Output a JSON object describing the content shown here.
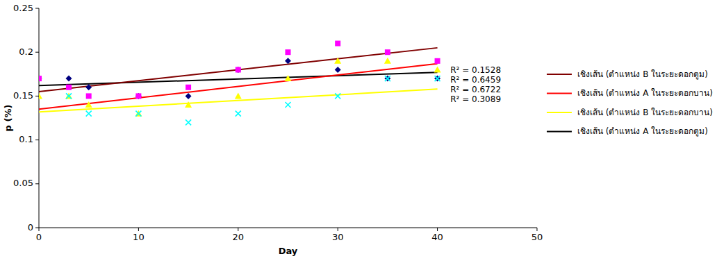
{
  "chart_data": {
    "type": "scatter",
    "x_label": "Day",
    "y_label": "p (%)",
    "xlim": [
      0,
      50
    ],
    "xticks": [
      0,
      10,
      20,
      30,
      40,
      50
    ],
    "ylim": [
      0,
      0.25
    ],
    "yticks": [
      0,
      0.05,
      0.1,
      0.15,
      0.2,
      0.25
    ],
    "grid": false,
    "legend": "right",
    "annotations": [
      "R² = 0.1528",
      "R² = 0.6459",
      "R² = 0.6722",
      "R² = 0.3089"
    ],
    "series": [
      {
        "type": "scatter",
        "marker": "diamond",
        "color": "#000080",
        "x": [
          0,
          3,
          5,
          10,
          15,
          20,
          25,
          30,
          35,
          40
        ],
        "values": [
          0.17,
          0.17,
          0.16,
          0.15,
          0.15,
          0.18,
          0.19,
          0.18,
          0.17,
          0.17
        ]
      },
      {
        "type": "scatter",
        "marker": "square",
        "color": "#ff00ff",
        "x": [
          0,
          3,
          5,
          10,
          15,
          20,
          25,
          30,
          35,
          40
        ],
        "values": [
          0.17,
          0.16,
          0.15,
          0.15,
          0.16,
          0.18,
          0.2,
          0.21,
          0.2,
          0.19
        ]
      },
      {
        "type": "scatter",
        "marker": "triangle",
        "color": "#ffff00",
        "x": [
          0,
          3,
          5,
          10,
          15,
          20,
          25,
          30,
          35,
          40
        ],
        "values": [
          0.15,
          0.15,
          0.14,
          0.13,
          0.14,
          0.15,
          0.17,
          0.19,
          0.19,
          0.18
        ]
      },
      {
        "type": "scatter",
        "marker": "cross",
        "color": "#00ffff",
        "x": [
          3,
          5,
          10,
          15,
          20,
          25,
          30,
          35,
          40
        ],
        "values": [
          0.15,
          0.13,
          0.13,
          0.12,
          0.13,
          0.14,
          0.15,
          0.17,
          0.17
        ]
      },
      {
        "type": "line",
        "name": "เชิงเส้น (ตำแหน่ง B ในระยะดอกตูม)",
        "color": "#800000",
        "x": [
          0,
          40
        ],
        "values": [
          0.155,
          0.205
        ]
      },
      {
        "type": "line",
        "name": "เชิงเส้น (ตำแหน่ง A ในระยะดอกบาน)",
        "color": "#ff0000",
        "x": [
          0,
          40
        ],
        "values": [
          0.135,
          0.187
        ]
      },
      {
        "type": "line",
        "name": "เชิงเส้น (ตำแหน่ง B ในระยะดอกบาน)",
        "color": "#ffff00",
        "x": [
          0,
          40
        ],
        "values": [
          0.132,
          0.158
        ]
      },
      {
        "type": "line",
        "name": "เชิงเส้น (ตำแหน่ง A ในระยะดอกตูม)",
        "color": "#000000",
        "x": [
          0,
          40
        ],
        "values": [
          0.162,
          0.177
        ]
      }
    ]
  }
}
